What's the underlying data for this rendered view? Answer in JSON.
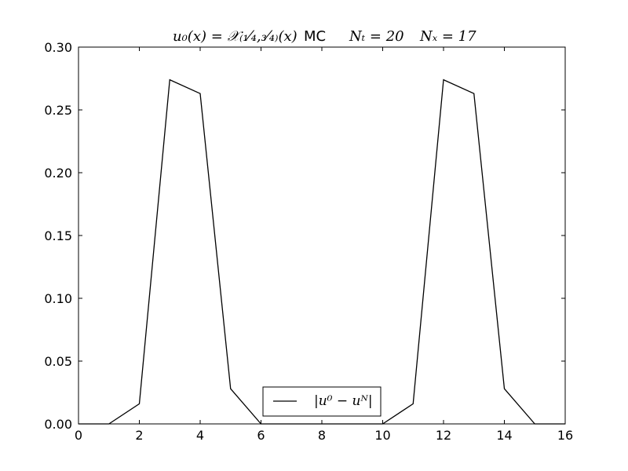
{
  "chart_data": {
    "type": "line",
    "title": {
      "part1": "u₀(x) = 𝒳₍₁⁄₄,₃⁄₄₎(x)",
      "part2": "MC",
      "part3": "Nₜ = 20",
      "part4": "Nₓ = 17"
    },
    "xlabel": "",
    "ylabel": "",
    "xlim": [
      0,
      16
    ],
    "ylim": [
      0,
      0.3
    ],
    "xticks": [
      0,
      2,
      4,
      6,
      8,
      10,
      12,
      14,
      16
    ],
    "xtick_labels": [
      "0",
      "2",
      "4",
      "6",
      "8",
      "10",
      "12",
      "14",
      "16"
    ],
    "yticks": [
      0,
      0.05,
      0.1,
      0.15,
      0.2,
      0.25,
      0.3
    ],
    "ytick_labels": [
      "0.00",
      "0.05",
      "0.10",
      "0.15",
      "0.20",
      "0.25",
      "0.30"
    ],
    "grid": false,
    "legend_position": "bottom-center",
    "series": [
      {
        "name": "|u⁰ − uᴺ|",
        "color": "#000000",
        "x": [
          0,
          1,
          2,
          3,
          4,
          5,
          6,
          7,
          8,
          9,
          10,
          11,
          12,
          13,
          14,
          15,
          16
        ],
        "y": [
          0,
          0,
          0.016,
          0.274,
          0.263,
          0.028,
          0,
          0,
          0,
          0,
          0,
          0.016,
          0.274,
          0.263,
          0.028,
          0,
          0
        ]
      }
    ]
  }
}
